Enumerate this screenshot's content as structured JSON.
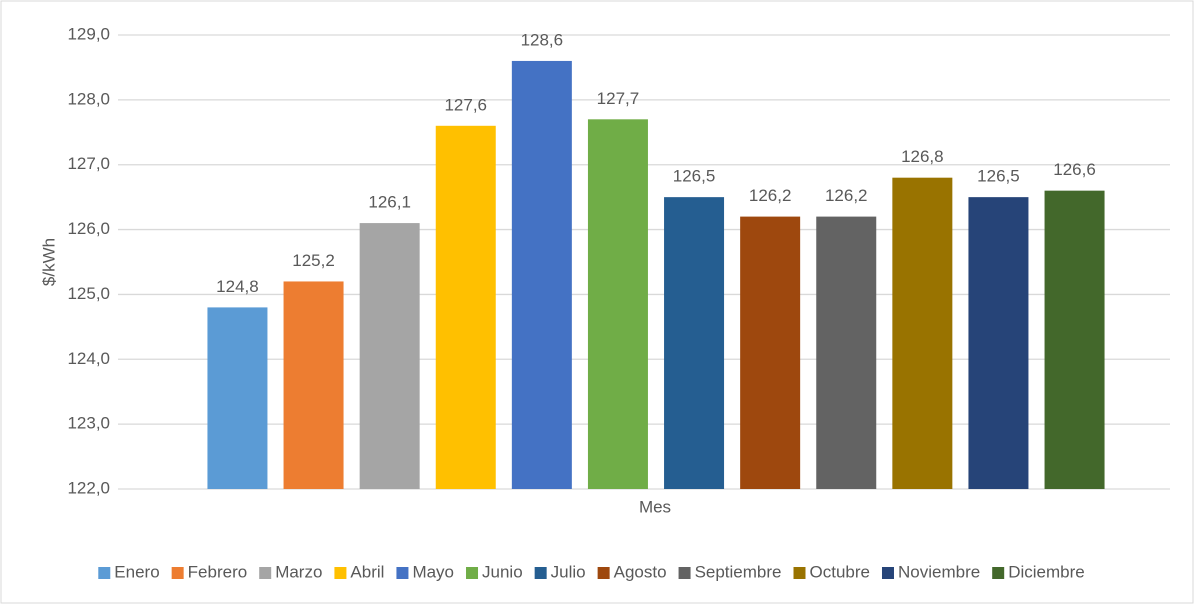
{
  "chart_data": {
    "type": "bar",
    "y_label": "$/kWh",
    "x_label": "Mes",
    "ylim": [
      122,
      129
    ],
    "yticks": [
      {
        "value": 122,
        "label": "122,0"
      },
      {
        "value": 123,
        "label": "123,0"
      },
      {
        "value": 124,
        "label": "124,0"
      },
      {
        "value": 125,
        "label": "125,0"
      },
      {
        "value": 126,
        "label": "126,0"
      },
      {
        "value": 127,
        "label": "127,0"
      },
      {
        "value": 128,
        "label": "128,0"
      },
      {
        "value": 129,
        "label": "129,0"
      }
    ],
    "grid": true,
    "legend": "bottom",
    "series": [
      {
        "name": "Enero",
        "color": "#5b9bd5",
        "values": [
          124.8
        ],
        "value_labels": [
          "124,8"
        ]
      },
      {
        "name": "Febrero",
        "color": "#ed7d31",
        "values": [
          125.2
        ],
        "value_labels": [
          "125,2"
        ]
      },
      {
        "name": "Marzo",
        "color": "#a5a5a5",
        "values": [
          126.1
        ],
        "value_labels": [
          "126,1"
        ]
      },
      {
        "name": "Abril",
        "color": "#ffc000",
        "values": [
          127.6
        ],
        "value_labels": [
          "127,6"
        ]
      },
      {
        "name": "Mayo",
        "color": "#4472c4",
        "values": [
          128.6
        ],
        "value_labels": [
          "128,6"
        ]
      },
      {
        "name": "Junio",
        "color": "#70ad47",
        "values": [
          127.7
        ],
        "value_labels": [
          "127,7"
        ]
      },
      {
        "name": "Julio",
        "color": "#255e91",
        "values": [
          126.5
        ],
        "value_labels": [
          "126,5"
        ]
      },
      {
        "name": "Agosto",
        "color": "#9e480e",
        "values": [
          126.2
        ],
        "value_labels": [
          "126,2"
        ]
      },
      {
        "name": "Septiembre",
        "color": "#636363",
        "values": [
          126.2
        ],
        "value_labels": [
          "126,2"
        ]
      },
      {
        "name": "Octubre",
        "color": "#997300",
        "values": [
          126.8
        ],
        "value_labels": [
          "126,8"
        ]
      },
      {
        "name": "Noviembre",
        "color": "#264478",
        "values": [
          126.5
        ],
        "value_labels": [
          "126,5"
        ]
      },
      {
        "name": "Diciembre",
        "color": "#43682b",
        "values": [
          126.6
        ],
        "value_labels": [
          "126,6"
        ]
      }
    ]
  }
}
